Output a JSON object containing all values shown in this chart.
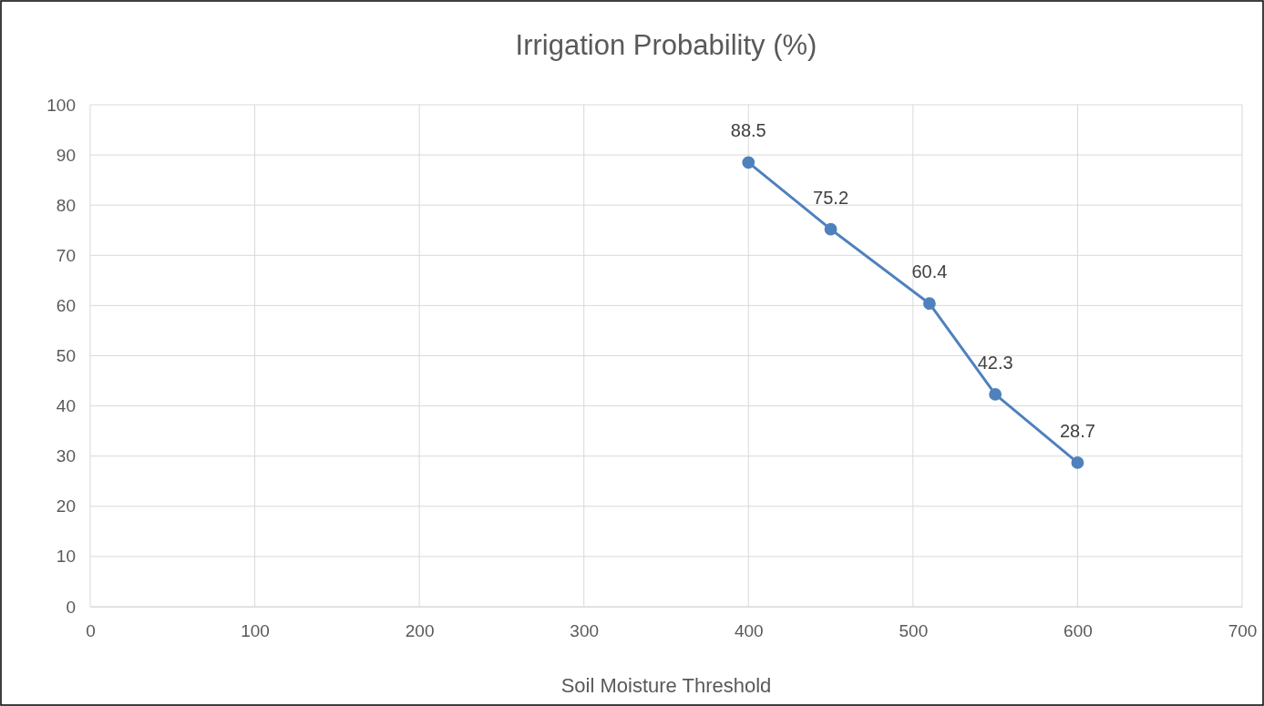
{
  "chart_data": {
    "type": "line",
    "title": "Irrigation Probability (%)",
    "xlabel": "Soil Moisture Threshold",
    "x": [
      400,
      450,
      510,
      550,
      600
    ],
    "series": [
      {
        "color": "#4f81bd",
        "values": [
          88.5,
          75.2,
          60.4,
          42.3,
          28.7
        ]
      }
    ],
    "xlim": [
      0,
      700
    ],
    "xticks": [
      0,
      100,
      200,
      300,
      400,
      500,
      600,
      700
    ],
    "ylim": [
      0,
      100
    ],
    "yticks": [
      0,
      10,
      20,
      30,
      40,
      50,
      60,
      70,
      80,
      90,
      100
    ],
    "grid": true,
    "marker": "circle",
    "line_style": "solid",
    "data_labels": true
  }
}
